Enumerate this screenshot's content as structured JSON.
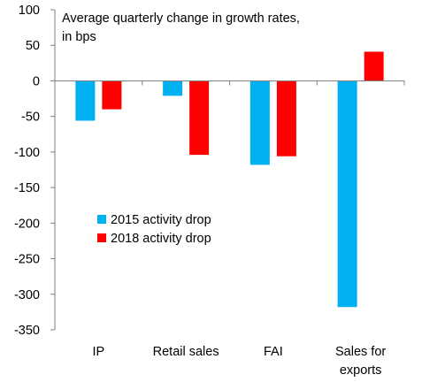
{
  "chart_data": {
    "type": "bar",
    "title_lines": [
      "Average quarterly change in growth rates,",
      "in bps"
    ],
    "categories": [
      "IP",
      "Retail sales",
      "FAI",
      "Sales for exports"
    ],
    "category_lines": [
      [
        "IP"
      ],
      [
        "Retail sales"
      ],
      [
        "FAI"
      ],
      [
        "Sales for",
        "exports"
      ]
    ],
    "series": [
      {
        "name": "2015 activity drop",
        "color": "#00B0F0",
        "values": [
          -56,
          -21,
          -118,
          -318
        ]
      },
      {
        "name": "2018 activity drop",
        "color": "#FF0000",
        "values": [
          -40,
          -104,
          -106,
          41
        ]
      }
    ],
    "ylim": [
      -350,
      100
    ],
    "yticks": [
      100,
      50,
      0,
      -50,
      -100,
      -150,
      -200,
      -250,
      -300,
      -350
    ],
    "ytick_labels": [
      "100",
      "50",
      "0",
      "-50",
      "-100",
      "-150",
      "-200",
      "-250",
      "-300",
      "-350"
    ],
    "legend": "inside-left",
    "grid": false
  }
}
